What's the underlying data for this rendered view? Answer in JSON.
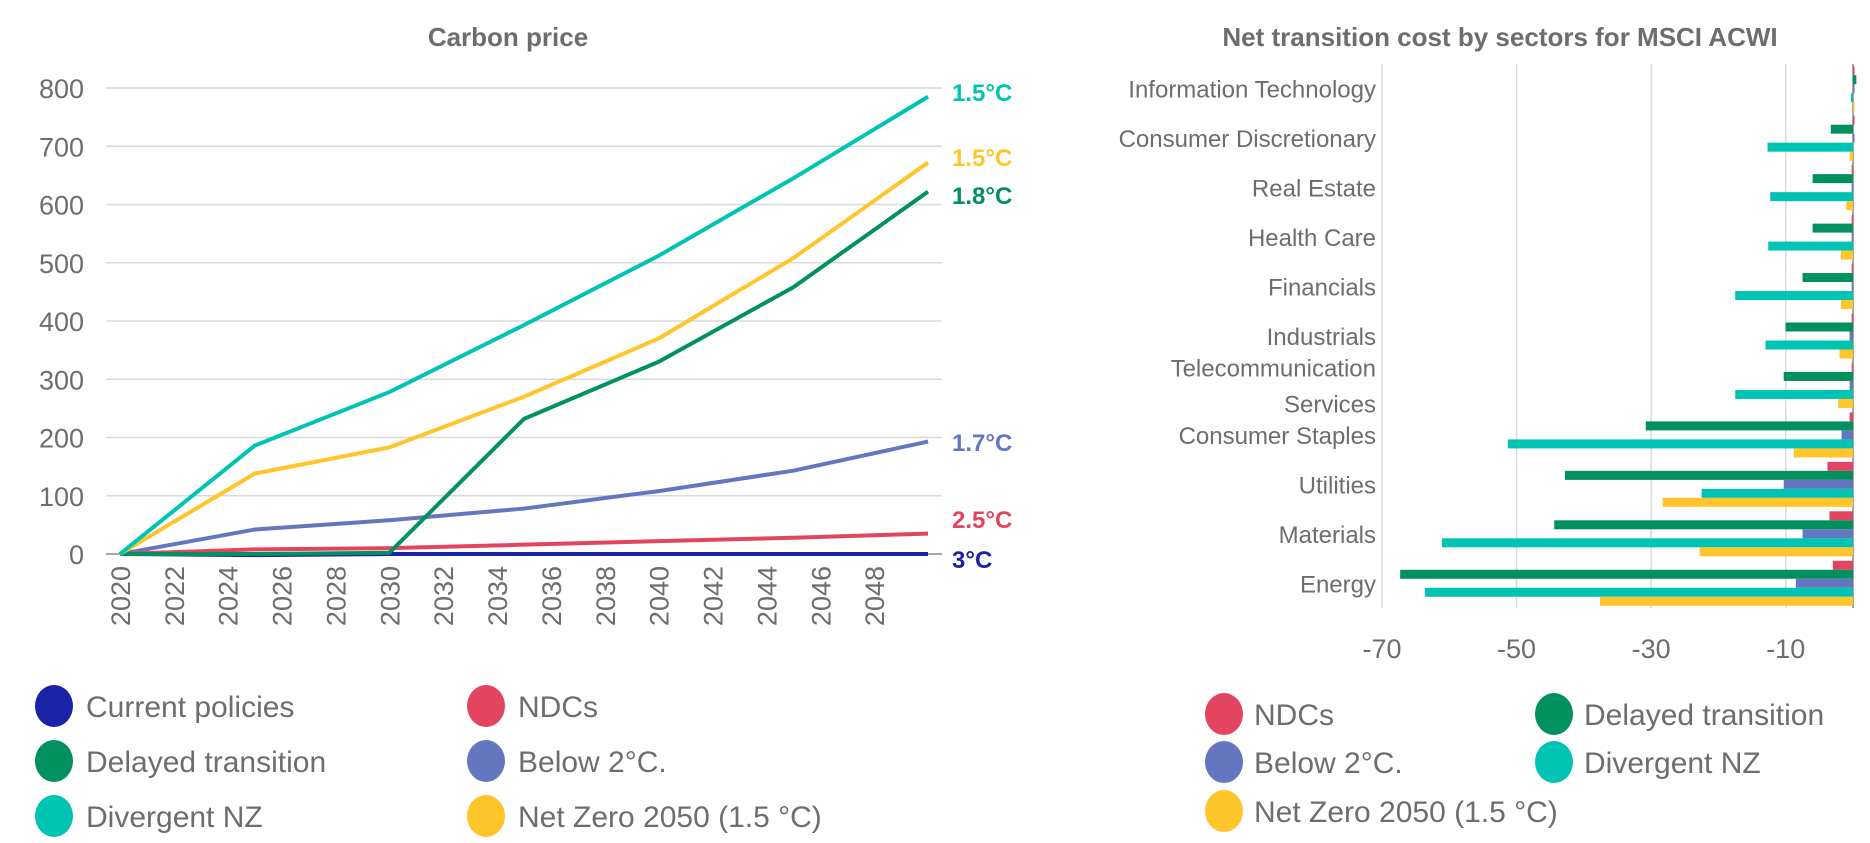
{
  "colors": {
    "current_policies": "#1a22a8",
    "ndcs": "#e34560",
    "delayed_transition": "#00915e",
    "below_2c": "#6576c1",
    "divergent_nz": "#00c4b3",
    "net_zero_2050": "#ffc52b",
    "text": "#6d6d6d",
    "grid": "#d9d9d9"
  },
  "chart_data": [
    {
      "type": "line",
      "title": "Carbon price",
      "xlabel": "",
      "ylabel": "",
      "xlim": [
        2020,
        2050
      ],
      "ylim": [
        0,
        800
      ],
      "grid": true,
      "legend_position": "bottom",
      "x_tick_labels": [
        "2020",
        "2022",
        "2024",
        "2026",
        "2028",
        "2030",
        "2032",
        "2034",
        "2036",
        "2038",
        "2040",
        "2042",
        "2044",
        "2046",
        "2048"
      ],
      "y_tick_labels": [
        "0",
        "100",
        "200",
        "300",
        "400",
        "500",
        "600",
        "700",
        "800"
      ],
      "x": [
        2020,
        2025,
        2030,
        2035,
        2040,
        2045,
        2050
      ],
      "series": [
        {
          "key": "current_policies",
          "name": "Current policies",
          "values": [
            0,
            -2,
            0,
            0,
            0,
            0,
            0
          ],
          "end_label": "3°C"
        },
        {
          "key": "ndcs",
          "name": "NDCs",
          "values": [
            0,
            8,
            10,
            16,
            22,
            28,
            35
          ],
          "end_label": "2.5°C"
        },
        {
          "key": "delayed_transition",
          "name": "Delayed transition",
          "values": [
            0,
            0,
            2,
            232,
            330,
            458,
            622
          ],
          "end_label": "1.8°C"
        },
        {
          "key": "below_2c",
          "name": "Below 2°C.",
          "values": [
            0,
            42,
            58,
            78,
            108,
            143,
            193
          ],
          "end_label": "1.7°C"
        },
        {
          "key": "divergent_nz",
          "name": "Divergent NZ",
          "values": [
            0,
            186,
            278,
            393,
            512,
            645,
            785
          ],
          "end_label": "1.5°C"
        },
        {
          "key": "net_zero_2050",
          "name": "Net Zero 2050 (1.5 °C)",
          "values": [
            0,
            138,
            183,
            270,
            370,
            508,
            672
          ],
          "end_label": "1.5°C"
        }
      ]
    },
    {
      "type": "bar",
      "orientation": "horizontal",
      "title": "Net transition cost by sectors for MSCI ACWI",
      "xlim": [
        -70,
        0
      ],
      "x_tick_labels": [
        "-70",
        "-50",
        "-30",
        "-10"
      ],
      "x_ticks": [
        -70,
        -50,
        -30,
        -10
      ],
      "grid": true,
      "legend_position": "bottom",
      "categories": [
        [
          "Information Technology"
        ],
        [
          "Consumer Discretionary"
        ],
        [
          "Real Estate"
        ],
        [
          "Health Care"
        ],
        [
          "Financials"
        ],
        [
          "Industrials"
        ],
        [
          "Telecommunication",
          "Services"
        ],
        [
          "Consumer Staples"
        ],
        [
          "Utilities"
        ],
        [
          "Materials"
        ],
        [
          "Energy"
        ]
      ],
      "series": [
        {
          "key": "ndcs",
          "name": "NDCs",
          "values": [
            0.2,
            0.2,
            -0.2,
            -0.2,
            -0.2,
            -0.2,
            -0.2,
            -0.5,
            -3.8,
            -3.5,
            -3.0
          ]
        },
        {
          "key": "delayed_transition",
          "name": "Delayed transition",
          "values": [
            0.5,
            -3.3,
            -6.0,
            -6.0,
            -7.5,
            -10.0,
            -10.3,
            -30.8,
            -42.8,
            -44.4,
            -67.3
          ]
        },
        {
          "key": "below_2c",
          "name": "Below 2°C.",
          "values": [
            0.2,
            0.2,
            -0.2,
            -0.2,
            -0.2,
            -0.5,
            -0.5,
            -1.7,
            -10.3,
            -7.5,
            -8.5
          ]
        },
        {
          "key": "divergent_nz",
          "name": "Divergent NZ",
          "values": [
            -0.3,
            -12.7,
            -12.3,
            -12.6,
            -17.5,
            -13.0,
            -17.5,
            -51.3,
            -22.5,
            -61.1,
            -63.6
          ]
        },
        {
          "key": "net_zero_2050",
          "name": "Net Zero 2050 (1.5 °C)",
          "values": [
            0.2,
            -0.5,
            -1.0,
            -1.8,
            -1.8,
            -2.0,
            -2.2,
            -8.8,
            -28.3,
            -22.8,
            -37.6
          ]
        }
      ]
    }
  ]
}
